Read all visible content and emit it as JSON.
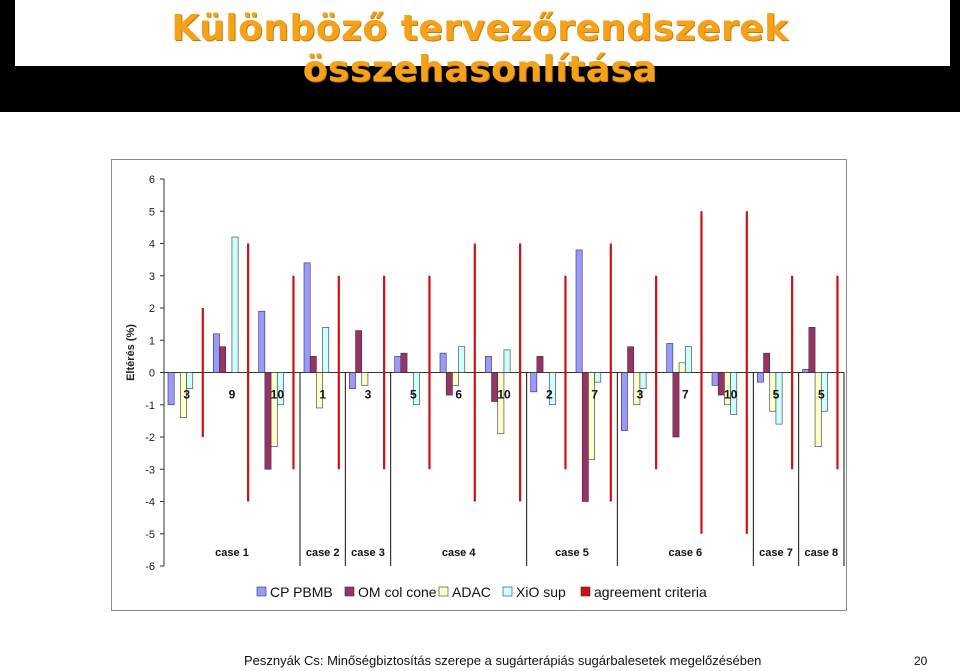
{
  "slide": {
    "title": "Különböző tervezőrendszerek összehasonlítása",
    "footer": "Pesznyák Cs: Minőségbiztosítás szerepe a sugárterápiás sugárbalesetek megelőzésében",
    "page_number": "20"
  },
  "colors": {
    "title": "#f5a21a",
    "cp_pbmb": "#9999ff",
    "om_col_cone": "#993366",
    "adac": "#ffffcc",
    "xio_sup": "#ccffff",
    "agreement": "#cc1111"
  },
  "chart_data": {
    "type": "bar",
    "ylabel": "Eltérés (%)",
    "ylim": [
      -6,
      6
    ],
    "yticks": [
      "6",
      "5",
      "4",
      "3",
      "2",
      "1",
      "0",
      "-1",
      "-2",
      "-3",
      "-4",
      "-5",
      "-6"
    ],
    "grid": false,
    "legend_position": "bottom",
    "categories": [
      "3",
      "9",
      "10",
      "1",
      "3",
      "5",
      "6",
      "10",
      "2",
      "7",
      "3",
      "7",
      "10",
      "5",
      "5"
    ],
    "groups": [
      {
        "label": "case 1",
        "categories": [
          "3",
          "9",
          "10"
        ]
      },
      {
        "label": "case 2",
        "categories": [
          "1"
        ]
      },
      {
        "label": "case 3",
        "categories": [
          "3"
        ]
      },
      {
        "label": "case 4",
        "categories": [
          "5",
          "6",
          "10"
        ]
      },
      {
        "label": "case 5",
        "categories": [
          "2",
          "7"
        ]
      },
      {
        "label": "case 6",
        "categories": [
          "3",
          "7",
          "10"
        ]
      },
      {
        "label": "case 7",
        "categories": [
          "5"
        ]
      },
      {
        "label": "case 8",
        "categories": [
          "5"
        ]
      }
    ],
    "series": [
      {
        "name": "CP PBMB",
        "color": "#9999ff",
        "values": [
          -1.0,
          1.2,
          1.9,
          3.4,
          -0.5,
          0.5,
          0.6,
          0.5,
          -0.6,
          3.8,
          -1.8,
          0.9,
          -0.4,
          -0.3,
          0.1
        ]
      },
      {
        "name": "OM col cone",
        "color": "#993366",
        "values": [
          0,
          0.8,
          -3.0,
          0.5,
          1.3,
          0.6,
          -0.7,
          -0.9,
          0.5,
          -4.0,
          0.8,
          -2.0,
          -0.7,
          0.6,
          1.4
        ]
      },
      {
        "name": "ADAC",
        "color": "#ffffcc",
        "values": [
          -1.4,
          0,
          -2.3,
          -1.1,
          -0.4,
          0,
          -0.4,
          -1.9,
          0,
          -2.7,
          -1.0,
          0.3,
          -1.0,
          -1.2,
          -2.3
        ]
      },
      {
        "name": "XiO sup",
        "color": "#ccffff",
        "values": [
          -0.5,
          4.2,
          -1.0,
          1.4,
          0,
          -1.0,
          0.8,
          0.7,
          -1.0,
          -0.3,
          -0.5,
          0.8,
          -1.3,
          -1.6,
          -1.2
        ]
      }
    ],
    "agreement_criteria": {
      "name": "agreement criteria",
      "color": "#cc1111",
      "values": [
        2.0,
        4.0,
        3.0,
        3.0,
        3.0,
        3.0,
        4.0,
        4.0,
        3.0,
        4.0,
        3.0,
        5.0,
        5.0,
        3.0,
        3.0
      ]
    }
  }
}
